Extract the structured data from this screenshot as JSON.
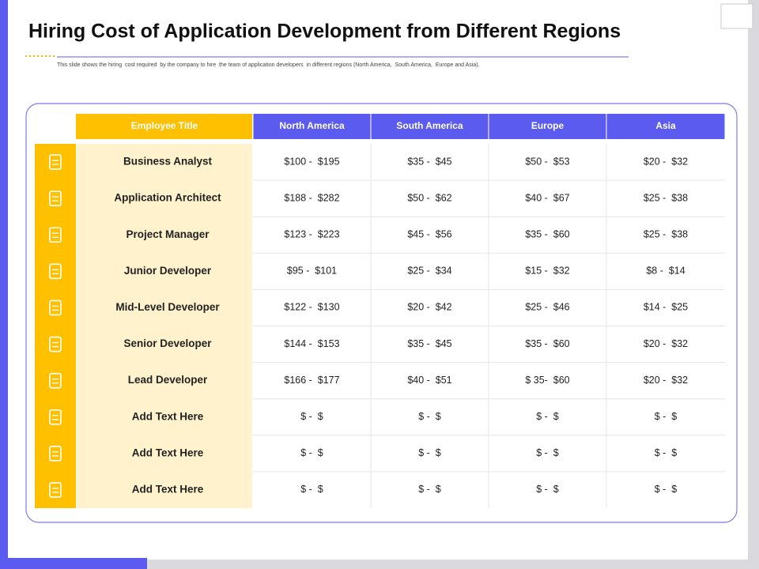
{
  "header": {
    "title": "Hiring Cost of Application Development from Different Regions",
    "subtitle": "This slide shows the hiring  cost required  by the company to hire  the team of application developers  in different regions (North America,  South America,  Europe and Asia)."
  },
  "table": {
    "columns": [
      "Employee Title",
      "North America",
      "South America",
      "Europe",
      "Asia"
    ],
    "rows": [
      [
        "Business Analyst",
        "$100 -  $195",
        "$35 -  $45",
        "$50 -  $53",
        "$20 -  $32"
      ],
      [
        "Application Architect",
        "$188 -  $282",
        "$50 -  $62",
        "$40 -  $67",
        "$25 -  $38"
      ],
      [
        "Project Manager",
        "$123 -  $223",
        "$45 -  $56",
        "$35 -  $60",
        "$25 -  $38"
      ],
      [
        "Junior Developer",
        "$95 -  $101",
        "$25 -  $34",
        "$15 -  $32",
        "$8 -  $14"
      ],
      [
        "Mid-Level Developer",
        "$122 -  $130",
        "$20 -  $42",
        "$25 -  $46",
        "$14 -  $25"
      ],
      [
        "Senior Developer",
        "$144 -  $153",
        "$35 -  $45",
        "$35 -  $60",
        "$20 -  $32"
      ],
      [
        "Lead Developer",
        "$166 -  $177",
        "$40 -  $51",
        "$ 35-  $60",
        "$20 -  $32"
      ],
      [
        "Add Text Here",
        "$ -  $",
        "$ -  $",
        "$ -  $",
        "$ -  $"
      ],
      [
        "Add Text Here",
        "$ -  $",
        "$ -  $",
        "$ -  $",
        "$ -  $"
      ],
      [
        "Add Text Here",
        "$ -  $",
        "$ -  $",
        "$ -  $",
        "$ -  $"
      ]
    ]
  }
}
